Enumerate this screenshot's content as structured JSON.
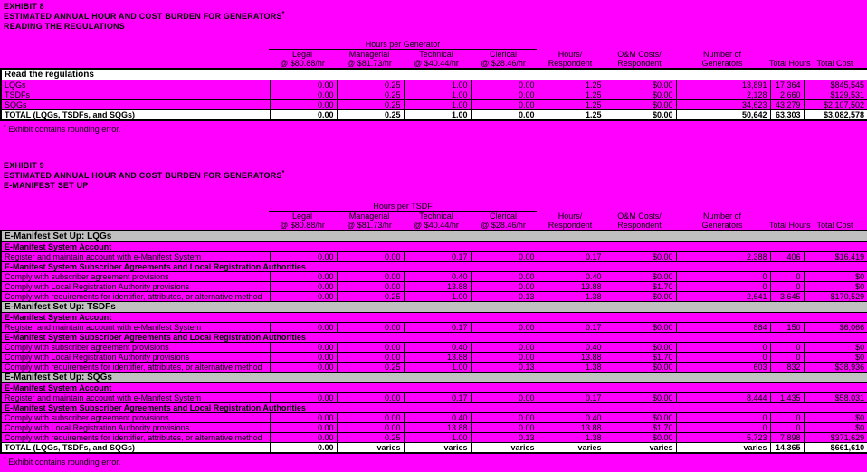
{
  "colors": {
    "background": "#ff00ff",
    "data_row": "#ff00ff",
    "header_row": "#ffffff",
    "section_row": "#c0c0c0",
    "border": "#000000",
    "text": "#000000"
  },
  "columns": {
    "headers": [
      {
        "line1": "Legal",
        "line2": "@ $80.88/hr"
      },
      {
        "line1": "Managerial",
        "line2": "@ $81.73/hr"
      },
      {
        "line1": "Technical",
        "line2": "@ $40.44/hr"
      },
      {
        "line1": "Clerical",
        "line2": "@ $28.46/hr"
      },
      {
        "line1": "Hours/",
        "line2": "Respondent"
      },
      {
        "line1": "O&M Costs/",
        "line2": "Respondent"
      },
      {
        "line1": "Number of",
        "line2": "Generators"
      },
      {
        "line1": "",
        "line2": "Total Hours"
      },
      {
        "line1": "",
        "line2": "Total Cost"
      }
    ]
  },
  "exhibit1": {
    "label": "EXHIBIT 8",
    "title": "ESTIMATED ANNUAL HOUR AND COST BURDEN FOR GENERATORS",
    "title_note": "*",
    "subtitle": "READING THE REGULATIONS",
    "spanner": "Hours per Generator",
    "footnote_mark": "*",
    "footnote": " Exhibit contains rounding error.",
    "table": {
      "rows": [
        {
          "type": "header",
          "label": "Read the regulations"
        },
        {
          "type": "data",
          "label": "LQGs",
          "values": [
            "0.00",
            "0.25",
            "1.00",
            "0.00",
            "1.25",
            "$0.00",
            "13,891",
            "17,364",
            "$845,545"
          ]
        },
        {
          "type": "data",
          "label": "TSDFs",
          "values": [
            "0.00",
            "0.25",
            "1.00",
            "0.00",
            "1.25",
            "$0.00",
            "2,128",
            "2,660",
            "$129,531"
          ]
        },
        {
          "type": "data",
          "label": "SQGs",
          "values": [
            "0.00",
            "0.25",
            "1.00",
            "0.00",
            "1.25",
            "$0.00",
            "34,623",
            "43,279",
            "$2,107,502"
          ]
        },
        {
          "type": "total",
          "label": "TOTAL (LQGs, TSDFs, and SQGs)",
          "values": [
            "0.00",
            "0.25",
            "1.00",
            "0.00",
            "1.25",
            "$0.00",
            "50,642",
            "63,303",
            "$3,082,578"
          ]
        }
      ]
    }
  },
  "exhibit2": {
    "label": "EXHIBIT 9",
    "title": "ESTIMATED ANNUAL HOUR AND COST BURDEN FOR GENERATORS",
    "title_note": "*",
    "subtitle": "E-MANIFEST SET UP",
    "spanner": "Hours per TSDF",
    "footnote_mark": "*",
    "footnote": " Exhibit contains rounding error.",
    "table": {
      "rows": [
        {
          "type": "section",
          "label": "E-Manifest Set Up:  LQGs"
        },
        {
          "type": "subheader",
          "label": "E-Manifest System Account"
        },
        {
          "type": "data",
          "label": "Register and maintain account with e-Manifest System",
          "values": [
            "0.00",
            "0.00",
            "0.17",
            "0.00",
            "0.17",
            "$0.00",
            "2,388",
            "406",
            "$16,419"
          ]
        },
        {
          "type": "subheader",
          "label": "E-Manifest System Subscriber Agreements and Local Registration Authorities"
        },
        {
          "type": "data",
          "label": "Comply with subscriber agreement provisions",
          "values": [
            "0.00",
            "0.00",
            "0.40",
            "0.00",
            "0.40",
            "$0.00",
            "0",
            "0",
            "$0"
          ]
        },
        {
          "type": "data",
          "label": "Comply with Local Registration Authority provisions",
          "values": [
            "0.00",
            "0.00",
            "13.88",
            "0.00",
            "13.88",
            "$1.70",
            "0",
            "0",
            "$0"
          ]
        },
        {
          "type": "data",
          "label": "Comply with requirements for identifier, attributes, or alternative method",
          "values": [
            "0.00",
            "0.25",
            "1.00",
            "0.13",
            "1.38",
            "$0.00",
            "2,641",
            "3,645",
            "$170,529"
          ]
        },
        {
          "type": "section",
          "label": "E-Manifest Set Up:  TSDFs"
        },
        {
          "type": "subheader",
          "label": "E-Manifest System Account"
        },
        {
          "type": "data",
          "label": "Register and maintain account with e-Manifest System",
          "values": [
            "0.00",
            "0.00",
            "0.17",
            "0.00",
            "0.17",
            "$0.00",
            "884",
            "150",
            "$6,066"
          ]
        },
        {
          "type": "subheader",
          "label": "E-Manifest System Subscriber Agreements and Local Registration Authorities"
        },
        {
          "type": "data",
          "label": "Comply with subscriber agreement provisions",
          "values": [
            "0.00",
            "0.00",
            "0.40",
            "0.00",
            "0.40",
            "$0.00",
            "0",
            "0",
            "$0"
          ]
        },
        {
          "type": "data",
          "label": "Comply with Local Registration Authority provisions",
          "values": [
            "0.00",
            "0.00",
            "13.88",
            "0.00",
            "13.88",
            "$1.70",
            "0",
            "0",
            "$0"
          ]
        },
        {
          "type": "data",
          "label": "Comply with requirements for identifier, attributes, or alternative method",
          "values": [
            "0.00",
            "0.25",
            "1.00",
            "0.13",
            "1.38",
            "$0.00",
            "603",
            "832",
            "$38,936"
          ]
        },
        {
          "type": "section",
          "label": "E-Manifest Set Up:  SQGs"
        },
        {
          "type": "subheader",
          "label": "E-Manifest System Account"
        },
        {
          "type": "data",
          "label": "Register and maintain account with e-Manifest System",
          "values": [
            "0.00",
            "0.00",
            "0.17",
            "0.00",
            "0.17",
            "$0.00",
            "8,444",
            "1,435",
            "$58,031"
          ]
        },
        {
          "type": "subheader",
          "label": "E-Manifest System Subscriber Agreements and Local Registration Authorities"
        },
        {
          "type": "data",
          "label": "Comply with subscriber agreement provisions",
          "values": [
            "0.00",
            "0.00",
            "0.40",
            "0.00",
            "0.40",
            "$0.00",
            "0",
            "0",
            "$0"
          ]
        },
        {
          "type": "data",
          "label": "Comply with Local Registration Authority provisions",
          "values": [
            "0.00",
            "0.00",
            "13.88",
            "0.00",
            "13.88",
            "$1.70",
            "0",
            "0",
            "$0"
          ]
        },
        {
          "type": "data",
          "label": "Comply with requirements for identifier, attributes, or alternative method",
          "values": [
            "0.00",
            "0.25",
            "1.00",
            "0.13",
            "1.38",
            "$0.00",
            "5,723",
            "7,898",
            "$371,629"
          ]
        },
        {
          "type": "total",
          "label": "TOTAL (LQGs, TSDFs, and SQGs)",
          "values": [
            "0.00",
            "varies",
            "varies",
            "varies",
            "varies",
            "varies",
            "varies",
            "14,365",
            "$661,610"
          ]
        }
      ]
    }
  }
}
